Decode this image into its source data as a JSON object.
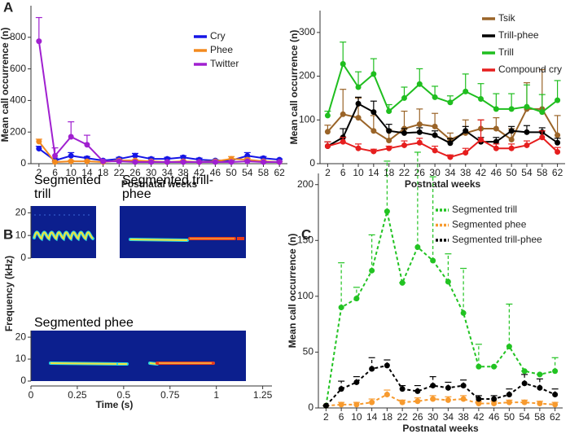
{
  "chart_data": [
    {
      "type": "line",
      "panel": "A",
      "xlabel": "Postnatal weeks",
      "ylabel": "Mean call occurrence (n)",
      "x": [
        2,
        6,
        10,
        14,
        18,
        22,
        26,
        30,
        34,
        38,
        42,
        46,
        50,
        54,
        58,
        62
      ],
      "xticks": [
        2,
        6,
        10,
        14,
        18,
        22,
        26,
        30,
        34,
        38,
        42,
        46,
        50,
        54,
        58,
        62
      ],
      "xlim": [
        0,
        64
      ],
      "ylim": [
        0,
        1000
      ],
      "yticks": [
        0,
        200,
        400,
        600,
        800
      ],
      "legend": "upper right",
      "series": [
        {
          "name": "Cry",
          "color": "#1515e6",
          "values": [
            95,
            20,
            50,
            35,
            20,
            30,
            50,
            30,
            30,
            40,
            25,
            20,
            20,
            50,
            35,
            25
          ],
          "errors": [
            15,
            15,
            20,
            10,
            5,
            10,
            15,
            10,
            10,
            10,
            10,
            5,
            5,
            20,
            10,
            5
          ]
        },
        {
          "name": "Phee",
          "color": "#f28a1f",
          "values": [
            140,
            10,
            15,
            15,
            10,
            20,
            20,
            15,
            10,
            15,
            10,
            15,
            30,
            25,
            15,
            10
          ],
          "errors": [
            15,
            5,
            5,
            5,
            5,
            5,
            5,
            5,
            5,
            5,
            5,
            5,
            15,
            10,
            5,
            5
          ]
        },
        {
          "name": "Twitter",
          "color": "#a020d0",
          "values": [
            775,
            50,
            170,
            120,
            15,
            15,
            10,
            10,
            10,
            10,
            10,
            10,
            10,
            15,
            10,
            10
          ],
          "errors": [
            150,
            50,
            95,
            60,
            5,
            5,
            5,
            5,
            5,
            5,
            5,
            5,
            5,
            5,
            5,
            5
          ]
        }
      ]
    },
    {
      "type": "line",
      "xlabel": "Postnatal weeks",
      "ylabel": "Mean call occurrence (n)",
      "x": [
        2,
        6,
        10,
        14,
        18,
        22,
        26,
        30,
        34,
        38,
        42,
        46,
        50,
        54,
        58,
        62
      ],
      "xticks": [
        2,
        6,
        10,
        14,
        18,
        22,
        26,
        30,
        34,
        38,
        42,
        46,
        50,
        54,
        58,
        62
      ],
      "xlim": [
        0,
        64
      ],
      "ylim": [
        0,
        350
      ],
      "yticks": [
        0,
        100,
        200,
        300
      ],
      "legend": "upper right",
      "series": [
        {
          "name": "Tsik",
          "color": "#9a6428",
          "values": [
            73,
            113,
            105,
            75,
            53,
            80,
            90,
            85,
            55,
            70,
            80,
            80,
            55,
            125,
            125,
            65
          ],
          "errors": [
            15,
            57,
            45,
            35,
            25,
            40,
            35,
            30,
            15,
            30,
            20,
            25,
            25,
            60,
            90,
            45
          ]
        },
        {
          "name": "Trill-phee",
          "color": "#000000",
          "values": [
            40,
            60,
            137,
            118,
            75,
            70,
            72,
            65,
            47,
            75,
            50,
            50,
            75,
            72,
            72,
            48
          ],
          "errors": [
            10,
            20,
            15,
            25,
            15,
            10,
            10,
            10,
            10,
            10,
            10,
            10,
            10,
            15,
            10,
            10
          ]
        },
        {
          "name": "Trill",
          "color": "#1fbe1f",
          "values": [
            110,
            228,
            175,
            205,
            120,
            150,
            182,
            152,
            140,
            165,
            148,
            125,
            125,
            130,
            118,
            145
          ],
          "errors": [
            10,
            50,
            35,
            35,
            15,
            25,
            35,
            25,
            15,
            40,
            35,
            35,
            35,
            50,
            40,
            45
          ]
        },
        {
          "name": "Compound cry",
          "color": "#e61e1e",
          "values": [
            40,
            50,
            35,
            28,
            35,
            42,
            48,
            30,
            15,
            25,
            55,
            35,
            35,
            42,
            60,
            27
          ],
          "errors": [
            10,
            10,
            10,
            5,
            5,
            10,
            10,
            10,
            5,
            10,
            45,
            10,
            10,
            10,
            15,
            10
          ]
        }
      ]
    },
    {
      "type": "spectrogram",
      "panel": "B",
      "xlabel": "Time (s)",
      "ylabel": "Frequency (kHz)",
      "xlim": [
        0,
        1.3
      ],
      "xticks": [
        0,
        0.25,
        0.5,
        0.75,
        1,
        1.25
      ],
      "panels": [
        {
          "labels": [
            "Segmented trill",
            "Segmented trill-phee"
          ],
          "ylim": [
            0,
            23
          ],
          "yticks": [
            0,
            10,
            20
          ]
        },
        {
          "labels": [
            "Segmented phee"
          ],
          "ylim": [
            0,
            23
          ],
          "yticks": [
            0,
            10,
            20
          ]
        }
      ]
    },
    {
      "type": "line",
      "panel": "C",
      "dashed": true,
      "xlabel": "Postnatal weeks",
      "ylabel": "Mean call occurrence (n)",
      "x": [
        2,
        6,
        10,
        14,
        18,
        22,
        26,
        30,
        34,
        38,
        42,
        46,
        50,
        54,
        58,
        62
      ],
      "xticks": [
        2,
        6,
        10,
        14,
        18,
        22,
        26,
        30,
        34,
        38,
        42,
        46,
        50,
        54,
        58,
        62
      ],
      "xlim": [
        0,
        64
      ],
      "ylim": [
        0,
        210
      ],
      "yticks": [
        0,
        50,
        100,
        150,
        200
      ],
      "legend": "upper right",
      "series": [
        {
          "name": "Segmented trill",
          "color": "#22c322",
          "values": [
            2,
            90,
            98,
            123,
            176,
            112,
            144,
            132,
            113,
            85,
            37,
            37,
            55,
            33,
            30,
            33
          ],
          "errors": [
            0,
            40,
            10,
            32,
            45,
            0,
            85,
            75,
            25,
            40,
            20,
            0,
            38,
            0,
            0,
            12
          ]
        },
        {
          "name": "Segmented phee",
          "color": "#f79a2e",
          "values": [
            2,
            3,
            3,
            5,
            12,
            5,
            6,
            8,
            7,
            8,
            4,
            4,
            5,
            5,
            4,
            3
          ],
          "errors": [
            0,
            2,
            2,
            3,
            4,
            2,
            3,
            3,
            3,
            3,
            2,
            2,
            2,
            2,
            2,
            2
          ]
        },
        {
          "name": "Segmented trill-phee",
          "color": "#000000",
          "values": [
            2,
            17,
            23,
            35,
            38,
            17,
            15,
            20,
            18,
            20,
            8,
            8,
            12,
            22,
            18,
            12
          ],
          "errors": [
            0,
            7,
            5,
            10,
            5,
            3,
            5,
            8,
            5,
            5,
            3,
            3,
            5,
            8,
            8,
            5
          ]
        }
      ]
    }
  ]
}
